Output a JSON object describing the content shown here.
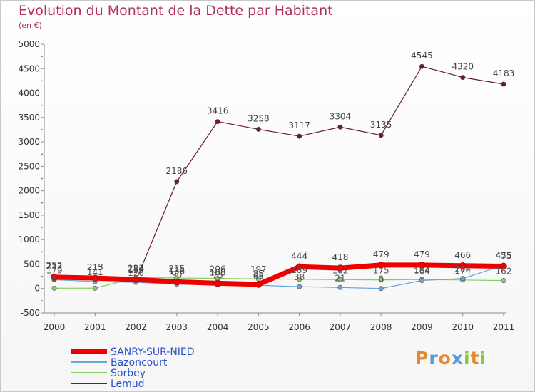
{
  "title": "Evolution du Montant de la Dette par Habitant",
  "subtitle": "(en €)",
  "logo": {
    "letters": [
      "P",
      "r",
      "o",
      "x",
      "i",
      "t",
      "i"
    ],
    "colors": [
      "#e38b2c",
      "#5b9bd5",
      "#e38b2c",
      "#5b9bd5",
      "#8cc63f",
      "#e38b2c",
      "#8cc63f"
    ]
  },
  "chart_data": {
    "type": "line",
    "x": [
      2000,
      2001,
      2002,
      2003,
      2004,
      2005,
      2006,
      2007,
      2008,
      2009,
      2010,
      2011
    ],
    "ylim": [
      -500,
      5000
    ],
    "yticks": [
      -500,
      0,
      500,
      1000,
      1500,
      2000,
      2500,
      3000,
      3500,
      4000,
      4500,
      5000
    ],
    "grid": false,
    "legend_position": "bottom-left",
    "series": [
      {
        "name": "Lemud",
        "color": "#6b1e24",
        "values": [
          252,
          215,
          159,
          2186,
          3416,
          3258,
          3117,
          3304,
          3135,
          4545,
          4320,
          4183
        ],
        "show_labels": true
      },
      {
        "name": "Sorbey",
        "color": "#88cc66",
        "values": [
          6,
          7,
          223,
          215,
          206,
          197,
          189,
          182,
          175,
          184,
          174,
          162
        ],
        "show_labels": true
      },
      {
        "name": "Bazoncourt",
        "color": "#6aa6d8",
        "values": [
          179,
          141,
          126,
          90,
          75,
          65,
          38,
          21,
          0,
          164,
          204,
          475
        ],
        "show_labels": true
      },
      {
        "name": "SANRY-SUR-NIED",
        "color": "#ee0000",
        "values": [
          232,
          213,
          184,
          136,
          108,
          85,
          444,
          418,
          479,
          479,
          466,
          455
        ],
        "show_labels": true
      }
    ]
  }
}
